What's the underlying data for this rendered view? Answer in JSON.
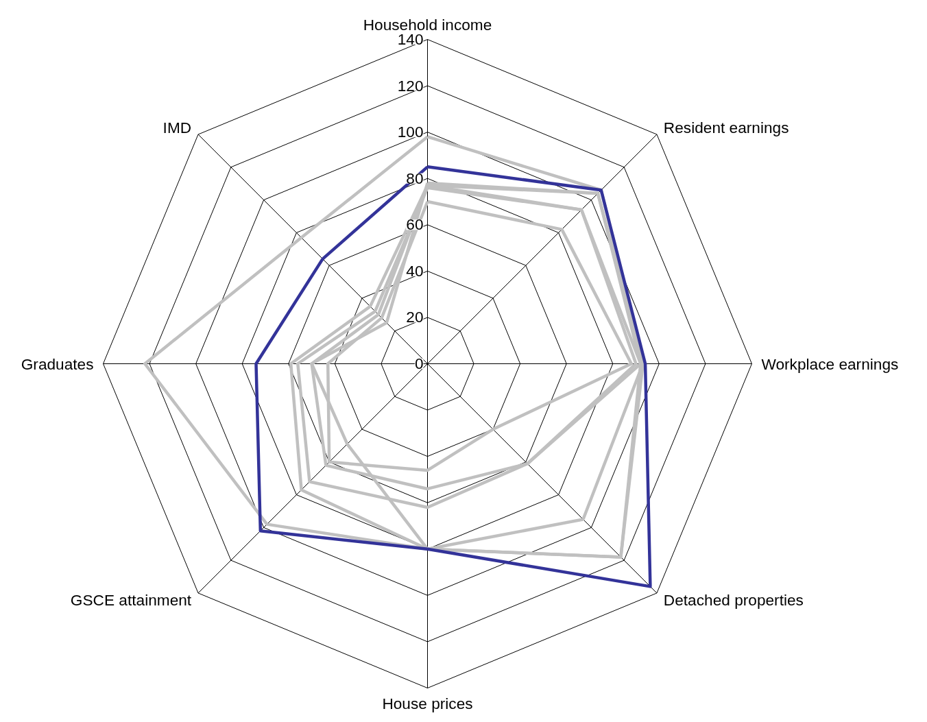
{
  "chart_data": {
    "type": "radar",
    "categories": [
      "Household income",
      "Resident earnings",
      "Workplace earnings",
      "Detached properties",
      "House prices",
      "GSCE attainment",
      "Graduates",
      "IMD"
    ],
    "ylim": [
      0,
      140
    ],
    "yticks": [
      0,
      20,
      40,
      60,
      80,
      100,
      120,
      140
    ],
    "grid": true,
    "marker": "none",
    "line_style": "solid",
    "series": [
      {
        "color": "#c0c0c0",
        "values": [
          98,
          106,
          93,
          118,
          80,
          98,
          122,
          77
        ]
      },
      {
        "color": "#c0c0c0",
        "values": [
          77,
          104,
          93,
          95,
          80,
          77,
          59,
          35
        ]
      },
      {
        "color": "#c0c0c0",
        "values": [
          76,
          94,
          92,
          61,
          62,
          72,
          56,
          32
        ]
      },
      {
        "color": "#c0c0c0",
        "values": [
          77,
          94,
          90,
          61,
          54,
          62,
          50,
          30
        ]
      },
      {
        "color": "#c0c0c0",
        "values": [
          70,
          82,
          88,
          40,
          46,
          60,
          43,
          28
        ]
      },
      {
        "color": "#c0c0c0",
        "values": [
          78,
          104,
          92,
          118,
          80,
          49,
          50,
          25
        ]
      },
      {
        "color": "#333399",
        "values": [
          85,
          106,
          94,
          136,
          80,
          102,
          74,
          64
        ]
      }
    ]
  }
}
